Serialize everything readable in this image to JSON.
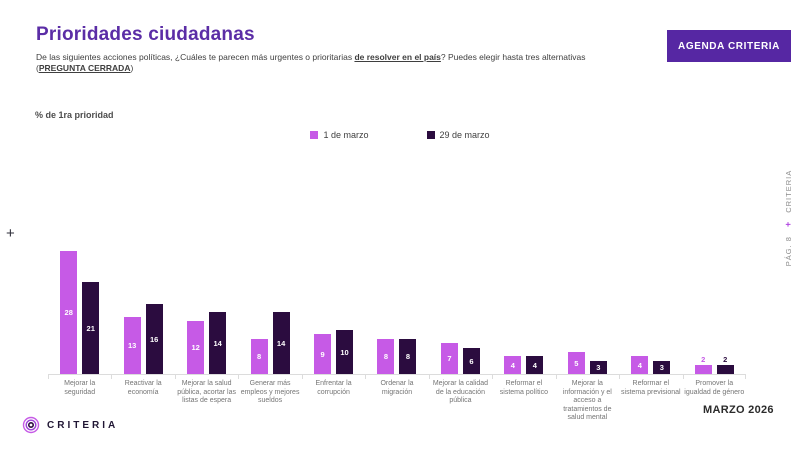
{
  "colors": {
    "accent_purple": "#5B2DA6",
    "button_purple": "#5627A3",
    "series1_magenta": "#C65AE6",
    "series2_dark_purple": "#2B0C3F",
    "axis_gray": "#DCDCDC"
  },
  "header": {
    "title": "Prioridades ciudadanas",
    "subtitle_part1": "De las siguientes acciones políticas, ¿Cuáles te parecen más urgentes o prioritarias ",
    "subtitle_emph1": "de resolver en el país",
    "subtitle_part2": "? Puedes elegir hasta tres alternativas (",
    "subtitle_emph2": "PREGUNTA CERRADA",
    "subtitle_part3": ")",
    "button_label": "AGENDA CRITERIA"
  },
  "chart_data": {
    "type": "bar",
    "title": "Prioridades ciudadanas",
    "section_label": "% de 1ra prioridad",
    "unit": "% de 1ra prioridad",
    "categories": [
      "Mejorar la seguridad",
      "Reactivar la economía",
      "Mejorar la salud pública, acortar las listas de espera",
      "Generar más empleos y mejores sueldos",
      "Enfrentar la corrupción",
      "Ordenar la migración",
      "Mejorar la calidad de la educación pública",
      "Reformar el sistema político",
      "Mejorar la información y el acceso a tratamientos de salud mental",
      "Reformar el sistema previsional",
      "Promover la igualdad de género"
    ],
    "series": [
      {
        "name": "1 de marzo",
        "color": "#C65AE6",
        "values": [
          28,
          13,
          12,
          8,
          9,
          8,
          7,
          4,
          5,
          4,
          2
        ]
      },
      {
        "name": "29 de marzo",
        "color": "#2B0C3F",
        "values": [
          21,
          16,
          14,
          14,
          10,
          8,
          6,
          4,
          3,
          3,
          2
        ]
      }
    ],
    "ylim": [
      0,
      30
    ],
    "grid": false,
    "value_labels": true,
    "legend_position": "top-center"
  },
  "footer": {
    "logo_text": "CRITERIA",
    "date": "MARZO 2026"
  },
  "side": {
    "page_label": "PÁG. 8",
    "plus": "+",
    "brand": "CRITERIA"
  },
  "decorations": {
    "left_plus": "+"
  }
}
